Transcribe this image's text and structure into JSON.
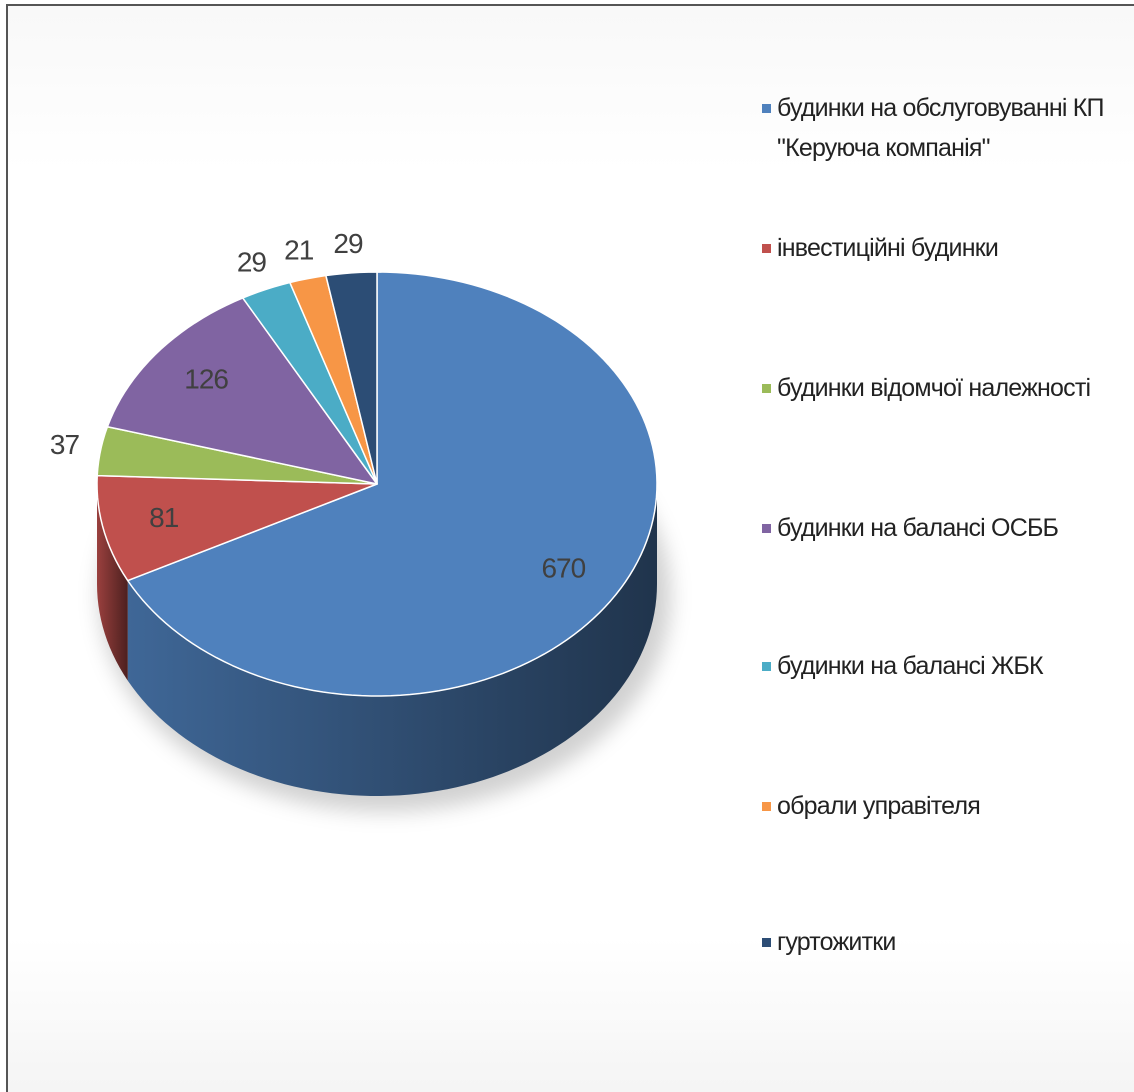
{
  "chart_data": {
    "type": "pie",
    "categories": [
      "будинки на обслуговуванні КП \"Керуюча компанія\"",
      "інвестиційні будинки",
      "будинки відомчої належності",
      "будинки на балансі ОСББ",
      "будинки на балансі ЖБК",
      "обрали управітеля",
      "гуртожитки"
    ],
    "values": [
      670,
      81,
      37,
      126,
      29,
      21,
      29
    ],
    "colors": [
      "#4f81bd",
      "#c0504d",
      "#9bbb59",
      "#8064a2",
      "#4bacc6",
      "#f79646",
      "#2c4d75"
    ],
    "legend": "right"
  }
}
